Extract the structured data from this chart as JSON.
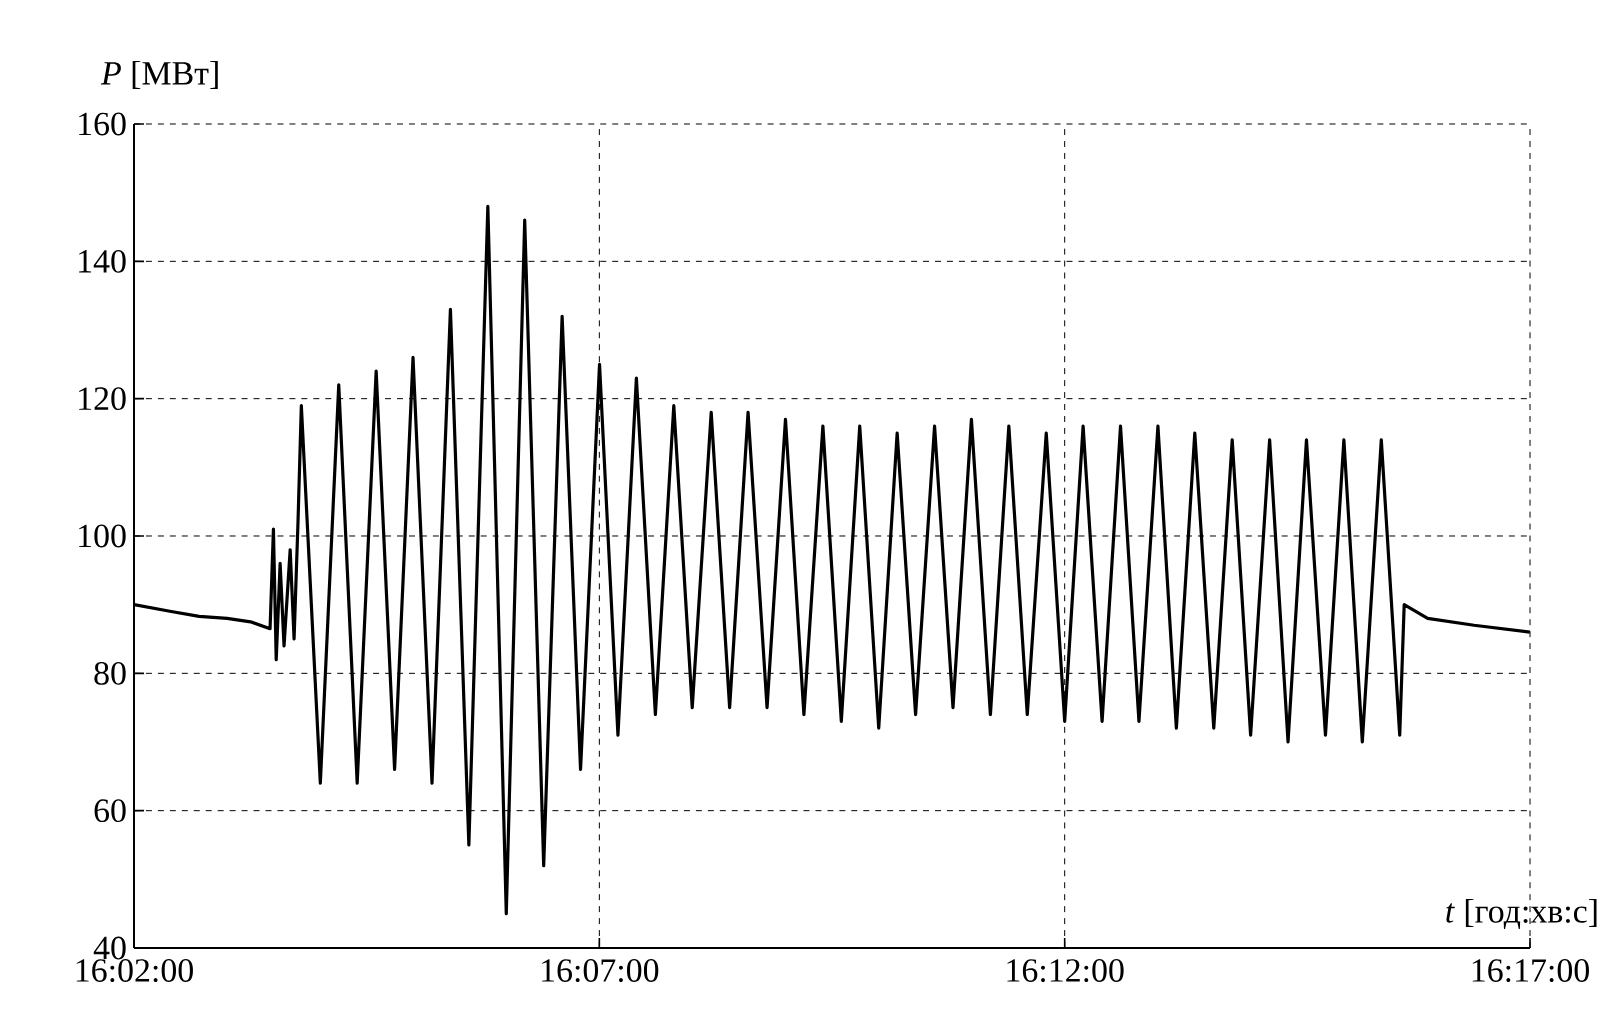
{
  "chart_data": {
    "type": "line",
    "xlabel": "*t* [год:хв:с]",
    "ylabel": "*P* [МВт]",
    "xlim": [
      16.033333,
      16.283333
    ],
    "ylim": [
      40,
      160
    ],
    "xticks": [
      {
        "value": 16.033333,
        "label": "16:02:00"
      },
      {
        "value": 16.116667,
        "label": "16:07:00"
      },
      {
        "value": 16.2,
        "label": "16:12:00"
      },
      {
        "value": 16.283333,
        "label": "16:17:00"
      }
    ],
    "yticks": [
      40,
      60,
      80,
      100,
      120,
      140,
      160
    ],
    "grid": true,
    "series": [
      {
        "color": "#000000",
        "x": [
          16.033334,
          16.04,
          16.045,
          16.05,
          16.0542,
          16.0577,
          16.0583,
          16.0588,
          16.0595,
          16.0602,
          16.0613,
          16.062,
          16.0627,
          16.0633,
          16.0667,
          16.07,
          16.0733,
          16.0767,
          16.08,
          16.0833,
          16.0867,
          16.09,
          16.0933,
          16.0967,
          16.1,
          16.1033,
          16.1067,
          16.11,
          16.1133,
          16.1167,
          16.12,
          16.1233,
          16.1267,
          16.13,
          16.1333,
          16.1367,
          16.14,
          16.1433,
          16.1467,
          16.15,
          16.1533,
          16.1567,
          16.16,
          16.1633,
          16.1667,
          16.17,
          16.1733,
          16.1767,
          16.18,
          16.1833,
          16.1867,
          16.19,
          16.1933,
          16.1967,
          16.2,
          16.2033,
          16.2067,
          16.21,
          16.2133,
          16.2167,
          16.22,
          16.2233,
          16.2267,
          16.23,
          16.2333,
          16.2367,
          16.24,
          16.2433,
          16.2467,
          16.25,
          16.2533,
          16.2567,
          16.26,
          16.2608,
          16.265,
          16.2733,
          16.2833
        ],
        "values": [
          90,
          89,
          88.3,
          88,
          87.5,
          86.5,
          101,
          82,
          96,
          84,
          98,
          85,
          102,
          119,
          64,
          122,
          64,
          124,
          66,
          126,
          64,
          133,
          55,
          148,
          45,
          146,
          52,
          132,
          66,
          125,
          71,
          123,
          74,
          119,
          75,
          118,
          75,
          118,
          75,
          117,
          74,
          116,
          73,
          116,
          72,
          115,
          74,
          116,
          75,
          117,
          74,
          116,
          74,
          115,
          73,
          116,
          73,
          116,
          73,
          116,
          72,
          115,
          72,
          114,
          71,
          114,
          70,
          114,
          71,
          114,
          70,
          114,
          71,
          90,
          88,
          87,
          86
        ]
      }
    ]
  }
}
